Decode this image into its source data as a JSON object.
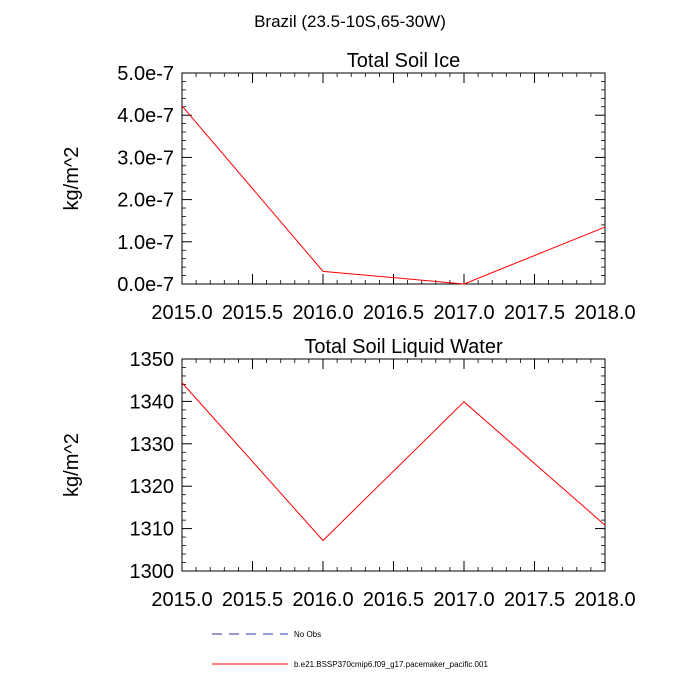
{
  "figure_title": "Brazil (23.5-10S,65-30W)",
  "chart_data": [
    {
      "type": "line",
      "title": "Total Soil Ice",
      "xlabel": "",
      "ylabel": "kg/m^2",
      "xlim": [
        2015.0,
        2018.0
      ],
      "ylim": [
        0.0,
        5e-07
      ],
      "x_ticks": [
        2015.0,
        2015.5,
        2016.0,
        2016.5,
        2017.0,
        2017.5,
        2018.0
      ],
      "x_tick_labels": [
        "2015.0",
        "2015.5",
        "2016.0",
        "2016.5",
        "2017.0",
        "2017.5",
        "2018.0"
      ],
      "y_ticks": [
        0.0,
        1e-07,
        2e-07,
        3e-07,
        4e-07,
        5e-07
      ],
      "y_tick_labels": [
        "0.0e-7",
        "1.0e-7",
        "2.0e-7",
        "3.0e-7",
        "4.0e-7",
        "5.0e-7"
      ],
      "grid": false,
      "series": [
        {
          "name": "b.e21.BSSP370cmip6.f09_g17.pacemaker_pacific.001",
          "color": "#ff0000",
          "x": [
            2015,
            2016,
            2017,
            2018
          ],
          "y": [
            4.22e-07,
            3e-08,
            0.0,
            1.35e-07
          ]
        }
      ]
    },
    {
      "type": "line",
      "title": "Total Soil Liquid Water",
      "xlabel": "",
      "ylabel": "kg/m^2",
      "xlim": [
        2015.0,
        2018.0
      ],
      "ylim": [
        1300,
        1350
      ],
      "x_ticks": [
        2015.0,
        2015.5,
        2016.0,
        2016.5,
        2017.0,
        2017.5,
        2018.0
      ],
      "x_tick_labels": [
        "2015.0",
        "2015.5",
        "2016.0",
        "2016.5",
        "2017.0",
        "2017.5",
        "2018.0"
      ],
      "y_ticks": [
        1300,
        1310,
        1320,
        1330,
        1340,
        1350
      ],
      "y_tick_labels": [
        "1300",
        "1310",
        "1320",
        "1330",
        "1340",
        "1350"
      ],
      "grid": false,
      "series": [
        {
          "name": "b.e21.BSSP370cmip6.f09_g17.pacemaker_pacific.001",
          "color": "#ff0000",
          "x": [
            2015,
            2016,
            2017,
            2018
          ],
          "y": [
            1344.4,
            1307.2,
            1339.9,
            1310.8
          ]
        }
      ]
    }
  ],
  "legend": [
    {
      "label": "No Obs",
      "color": "#3333aa",
      "style": "dashed"
    },
    {
      "label": "b.e21.BSSP370cmip6.f09_g17.pacemaker_pacific.001",
      "color": "#ff0000",
      "style": "solid"
    }
  ]
}
